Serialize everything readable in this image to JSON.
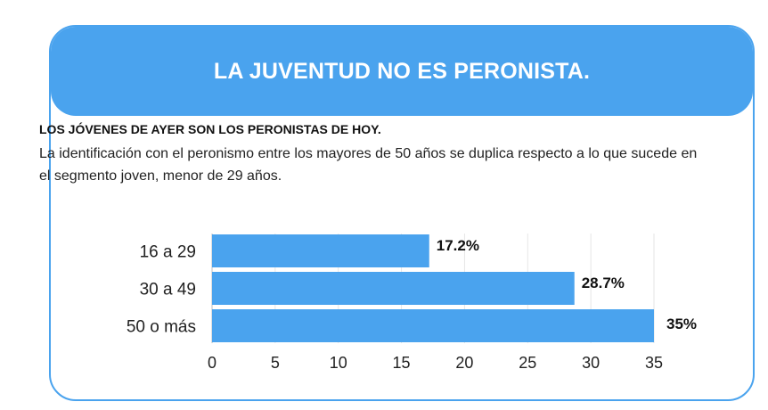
{
  "header": {
    "title": "LA JUVENTUD NO ES PERONISTA."
  },
  "subtitle": "LOS JÓVENES DE AYER SON LOS PERONISTAS DE HOY.",
  "description": "La identificación con el peronismo entre los mayores de 50 años se duplica respecto a lo que sucede en el segmento joven, menor de 29 años.",
  "colors": {
    "accent": "#4aa3ee",
    "bar": "#4aa3ee"
  },
  "chart_data": {
    "type": "bar",
    "orientation": "horizontal",
    "categories": [
      "16 a 29",
      "30 a 49",
      "50 o más"
    ],
    "values": [
      17.2,
      28.7,
      35
    ],
    "data_labels": [
      "17.2%",
      "28.7%",
      "35%"
    ],
    "xlim": [
      0,
      35
    ],
    "xticks": [
      0,
      5,
      10,
      15,
      20,
      25,
      30,
      35
    ],
    "grid": true,
    "legend": "none"
  }
}
